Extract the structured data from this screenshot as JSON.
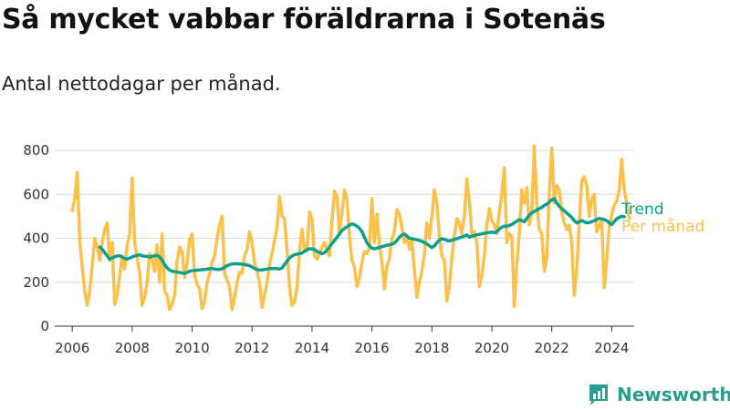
{
  "title": "Så mycket vabbar föräldrarna i Sotenäs",
  "subtitle": "Antal nettodagar per månad.",
  "brand": "Newsworthy",
  "colors": {
    "trend": "#0e9e8c",
    "monthly": "#fbc14b",
    "brand": "#2a9d8f"
  },
  "chart_data": {
    "type": "line",
    "x_range": [
      "2005-06",
      "2024-10"
    ],
    "ylim": [
      0,
      800
    ],
    "yticks": [
      0,
      200,
      400,
      600,
      800
    ],
    "xticks": [
      "2006",
      "2008",
      "2010",
      "2012",
      "2014",
      "2016",
      "2018",
      "2020",
      "2022",
      "2024"
    ],
    "grid": "horizontal",
    "legend_position": "right",
    "series": [
      {
        "name": "Trend",
        "start": "2006-12",
        "values": [
          360,
          350,
          335,
          320,
          305,
          310,
          315,
          320,
          320,
          315,
          308,
          305,
          310,
          315,
          320,
          322,
          325,
          320,
          318,
          318,
          315,
          318,
          320,
          322,
          315,
          300,
          280,
          265,
          255,
          250,
          248,
          246,
          244,
          242,
          240,
          245,
          250,
          252,
          254,
          255,
          256,
          257,
          258,
          260,
          262,
          262,
          260,
          258,
          258,
          262,
          268,
          275,
          280,
          283,
          284,
          284,
          283,
          282,
          280,
          278,
          275,
          270,
          262,
          258,
          255,
          256,
          258,
          260,
          262,
          262,
          263,
          262,
          260,
          265,
          280,
          295,
          310,
          320,
          325,
          328,
          330,
          333,
          340,
          348,
          352,
          352,
          348,
          340,
          335,
          330,
          335,
          345,
          360,
          375,
          390,
          405,
          420,
          435,
          445,
          452,
          460,
          465,
          462,
          455,
          445,
          430,
          405,
          380,
          365,
          355,
          352,
          355,
          358,
          362,
          365,
          368,
          370,
          373,
          378,
          390,
          405,
          415,
          420,
          410,
          400,
          398,
          395,
          393,
          390,
          386,
          380,
          375,
          365,
          358,
          365,
          380,
          392,
          398,
          395,
          390,
          388,
          390,
          395,
          398,
          402,
          405,
          410,
          415,
          405,
          410,
          412,
          416,
          418,
          420,
          423,
          425,
          426,
          428,
          425,
          430,
          442,
          450,
          455,
          455,
          458,
          463,
          470,
          478,
          485,
          480,
          475,
          490,
          505,
          515,
          522,
          528,
          535,
          540,
          550,
          555,
          565,
          575,
          580,
          560,
          545,
          535,
          525,
          515,
          505,
          495,
          480,
          470,
          475,
          480,
          475,
          470,
          472,
          475,
          480,
          485,
          490,
          488,
          485,
          480,
          470,
          462,
          475,
          488,
          495,
          500,
          498
        ]
      },
      {
        "name": "Per månad",
        "start": "2006-01",
        "values": [
          525,
          580,
          700,
          390,
          270,
          160,
          95,
          160,
          280,
          400,
          360,
          300,
          380,
          440,
          470,
          300,
          380,
          100,
          140,
          230,
          320,
          260,
          370,
          420,
          675,
          380,
          310,
          240,
          95,
          130,
          200,
          330,
          310,
          250,
          370,
          200,
          420,
          160,
          140,
          75,
          100,
          140,
          300,
          360,
          340,
          220,
          290,
          395,
          420,
          230,
          190,
          170,
          80,
          110,
          200,
          240,
          290,
          320,
          400,
          460,
          500,
          240,
          210,
          180,
          75,
          130,
          200,
          245,
          240,
          320,
          350,
          430,
          380,
          290,
          250,
          200,
          85,
          140,
          200,
          280,
          330,
          390,
          450,
          590,
          500,
          490,
          350,
          180,
          95,
          110,
          180,
          340,
          440,
          350,
          340,
          520,
          490,
          320,
          305,
          330,
          360,
          380,
          350,
          320,
          480,
          615,
          590,
          420,
          520,
          620,
          580,
          410,
          300,
          270,
          180,
          220,
          290,
          340,
          330,
          360,
          580,
          380,
          510,
          370,
          290,
          170,
          270,
          310,
          400,
          430,
          530,
          510,
          450,
          380,
          410,
          350,
          390,
          260,
          130,
          200,
          250,
          330,
          470,
          400,
          500,
          620,
          560,
          410,
          320,
          300,
          115,
          180,
          310,
          410,
          490,
          470,
          420,
          500,
          670,
          570,
          420,
          430,
          380,
          180,
          230,
          320,
          460,
          535,
          480,
          460,
          420,
          520,
          600,
          720,
          380,
          420,
          410,
          90,
          280,
          420,
          620,
          560,
          630,
          460,
          520,
          820,
          560,
          440,
          420,
          250,
          310,
          600,
          810,
          560,
          640,
          620,
          520,
          470,
          440,
          460,
          380,
          140,
          250,
          470,
          660,
          680,
          640,
          500,
          580,
          600,
          430,
          460,
          480,
          175,
          300,
          450,
          510,
          550,
          570,
          620,
          760,
          620,
          560,
          490
        ]
      }
    ]
  }
}
